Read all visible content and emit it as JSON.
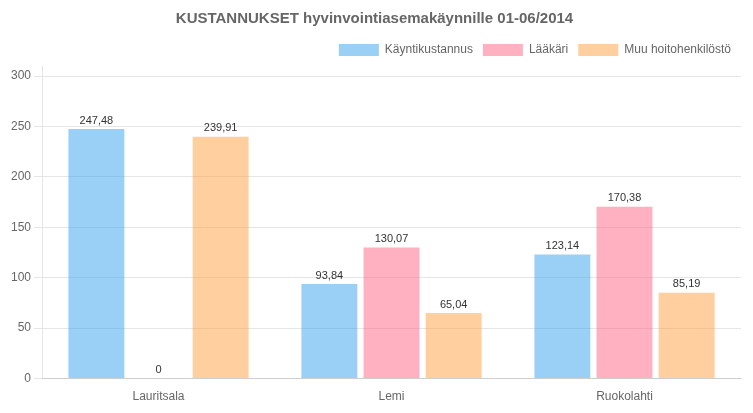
{
  "chart_data": {
    "type": "bar",
    "title": "KUSTANNUKSET hyvinvointiasemakäynnille 01-06/2014",
    "categories": [
      "Lauritsala",
      "Lemi",
      "Ruokolahti"
    ],
    "series": [
      {
        "name": "Käyntikustannus",
        "values": [
          247.48,
          93.84,
          123.14
        ],
        "value_labels": [
          "247,48",
          "93,84",
          "123,14"
        ]
      },
      {
        "name": "Lääkäri",
        "values": [
          0.0,
          130.07,
          170.38
        ],
        "value_labels": [
          "0",
          "130,07",
          "170,38"
        ]
      },
      {
        "name": "Muu hoitohenkilöstö",
        "values": [
          239.91,
          65.04,
          85.19
        ],
        "value_labels": [
          "239,91",
          "65,04",
          "85,19"
        ]
      }
    ],
    "ylim": [
      0,
      310
    ],
    "yticks": [
      0,
      50,
      100,
      150,
      200,
      250,
      300
    ],
    "grid": true,
    "legend": "upper right",
    "data_labels": true
  }
}
